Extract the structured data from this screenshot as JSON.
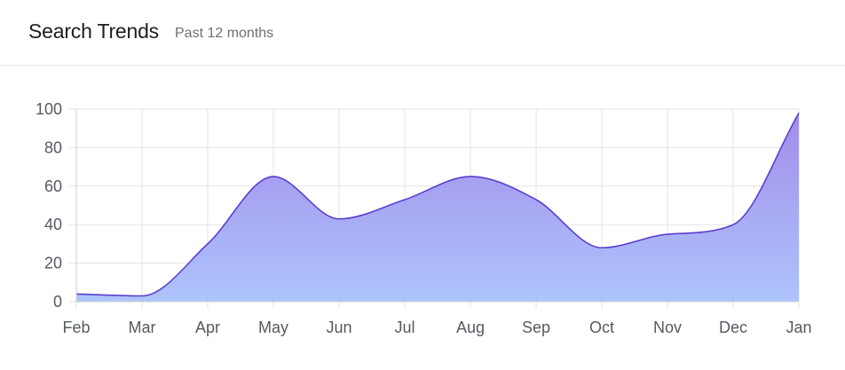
{
  "header": {
    "title": "Search Trends",
    "subtitle": "Past 12 months"
  },
  "colors": {
    "line": "#5b3fd1",
    "fill_top": "#9d86ea",
    "fill_bottom": "#a9c1fb",
    "grid": "#e3e3e3"
  },
  "chart_data": {
    "type": "area",
    "categories": [
      "Feb",
      "Mar",
      "Apr",
      "May",
      "Jun",
      "Jul",
      "Aug",
      "Sep",
      "Oct",
      "Nov",
      "Dec",
      "Jan"
    ],
    "series": [
      {
        "values": [
          4,
          3,
          30,
          65,
          43,
          53,
          65,
          53,
          28,
          35,
          40,
          98
        ]
      }
    ],
    "yticks": [
      0,
      20,
      40,
      60,
      80,
      100
    ],
    "ylim": [
      0,
      100
    ],
    "grid": true,
    "legend": "none"
  }
}
